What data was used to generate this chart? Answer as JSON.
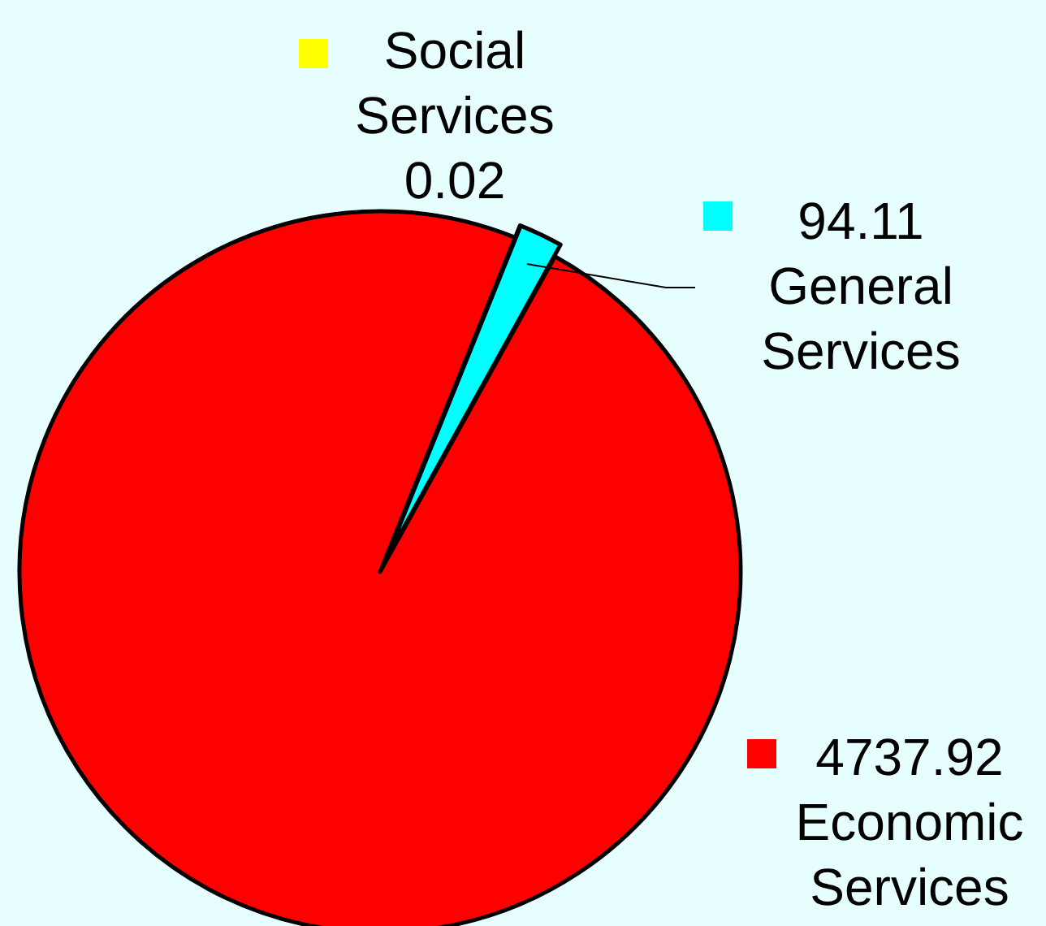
{
  "chart_data": {
    "type": "pie",
    "categories": [
      "Social Services",
      "General Services",
      "Economic Services"
    ],
    "values": [
      0.02,
      94.11,
      4737.92
    ],
    "colors": [
      "#ffff00",
      "#00ffff",
      "#ff0000"
    ],
    "data_labels": true,
    "legend": "right"
  }
}
